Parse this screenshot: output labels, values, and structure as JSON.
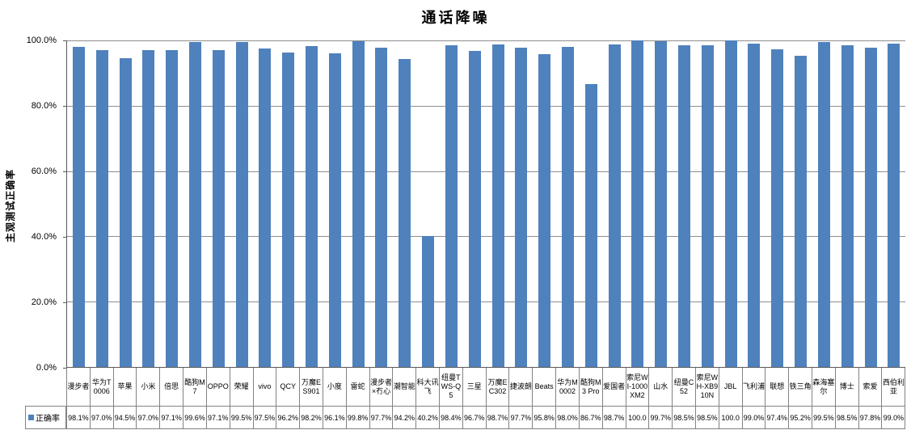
{
  "chart_data": {
    "type": "bar",
    "title": "通话降噪",
    "xlabel": "",
    "ylabel": "主观测试正确率",
    "series_name": "正确率",
    "categories": [
      "漫步者",
      "华为T0006",
      "苹果",
      "小米",
      "倍思",
      "酷狗M7",
      "OPPO",
      "荣耀",
      "vivo",
      "QCY",
      "万魔ES901",
      "小度",
      "雷蛇",
      "漫步者×冇心",
      "潮智能",
      "科大讯飞",
      "纽曼TWS-Q5",
      "三星",
      "万魔EC302",
      "捷波朗",
      "Beats",
      "华为M0002",
      "酷狗M3 Pro",
      "爱国者",
      "索尼WI-1000XM2",
      "山水",
      "纽曼C52",
      "索尼WH-XB910N",
      "JBL",
      "飞利浦",
      "联想",
      "铁三角",
      "森海塞尔",
      "博士",
      "索爱",
      "西伯利亚"
    ],
    "values": [
      98.1,
      97.0,
      94.5,
      97.0,
      97.1,
      99.6,
      97.1,
      99.5,
      97.5,
      96.2,
      98.2,
      96.1,
      99.8,
      97.7,
      94.2,
      40.2,
      98.4,
      96.7,
      98.7,
      97.7,
      95.8,
      98.0,
      86.7,
      98.7,
      100.0,
      99.7,
      98.5,
      98.5,
      100.0,
      99.0,
      97.4,
      95.2,
      99.5,
      98.5,
      97.8,
      99.0
    ],
    "value_labels_as_displayed": [
      "98.1%",
      "97.0%",
      "94.5%",
      "97.0%",
      "97.1%",
      "99.6%",
      "97.1%",
      "99.5%",
      "97.5%",
      "96.2%",
      "98.2%",
      "96.1%",
      "99.8%",
      "97.7%",
      "94.2%",
      "40.2%",
      "98.4%",
      "96.7%",
      "98.7%",
      "97.7%",
      "95.8%",
      "98.0%",
      "86.7%",
      "98.7%",
      "100.0",
      "99.7%",
      "98.5%",
      "98.5%",
      "100.0",
      "99.0%",
      "97.4%",
      "95.2%",
      "99.5%",
      "98.5%",
      "97.8%",
      "99.0%"
    ],
    "ylim": [
      0,
      100
    ],
    "y_ticks": [
      {
        "label": "100.0%",
        "pct": 100
      },
      {
        "label": "80.0%",
        "pct": 80
      },
      {
        "label": "60.0%",
        "pct": 60
      },
      {
        "label": "40.0%",
        "pct": 40
      },
      {
        "label": "20.0%",
        "pct": 20
      },
      {
        "label": "0.0%",
        "pct": 0
      }
    ],
    "grid": "horizontal-major",
    "legend_position": "bottom-data-table-left",
    "colors": {
      "bar": "#4F81BD",
      "gridline": "#8e8e8e",
      "axis_line": "#595959",
      "table_border": "#828282",
      "legend_marker": "#4F81BD"
    }
  }
}
